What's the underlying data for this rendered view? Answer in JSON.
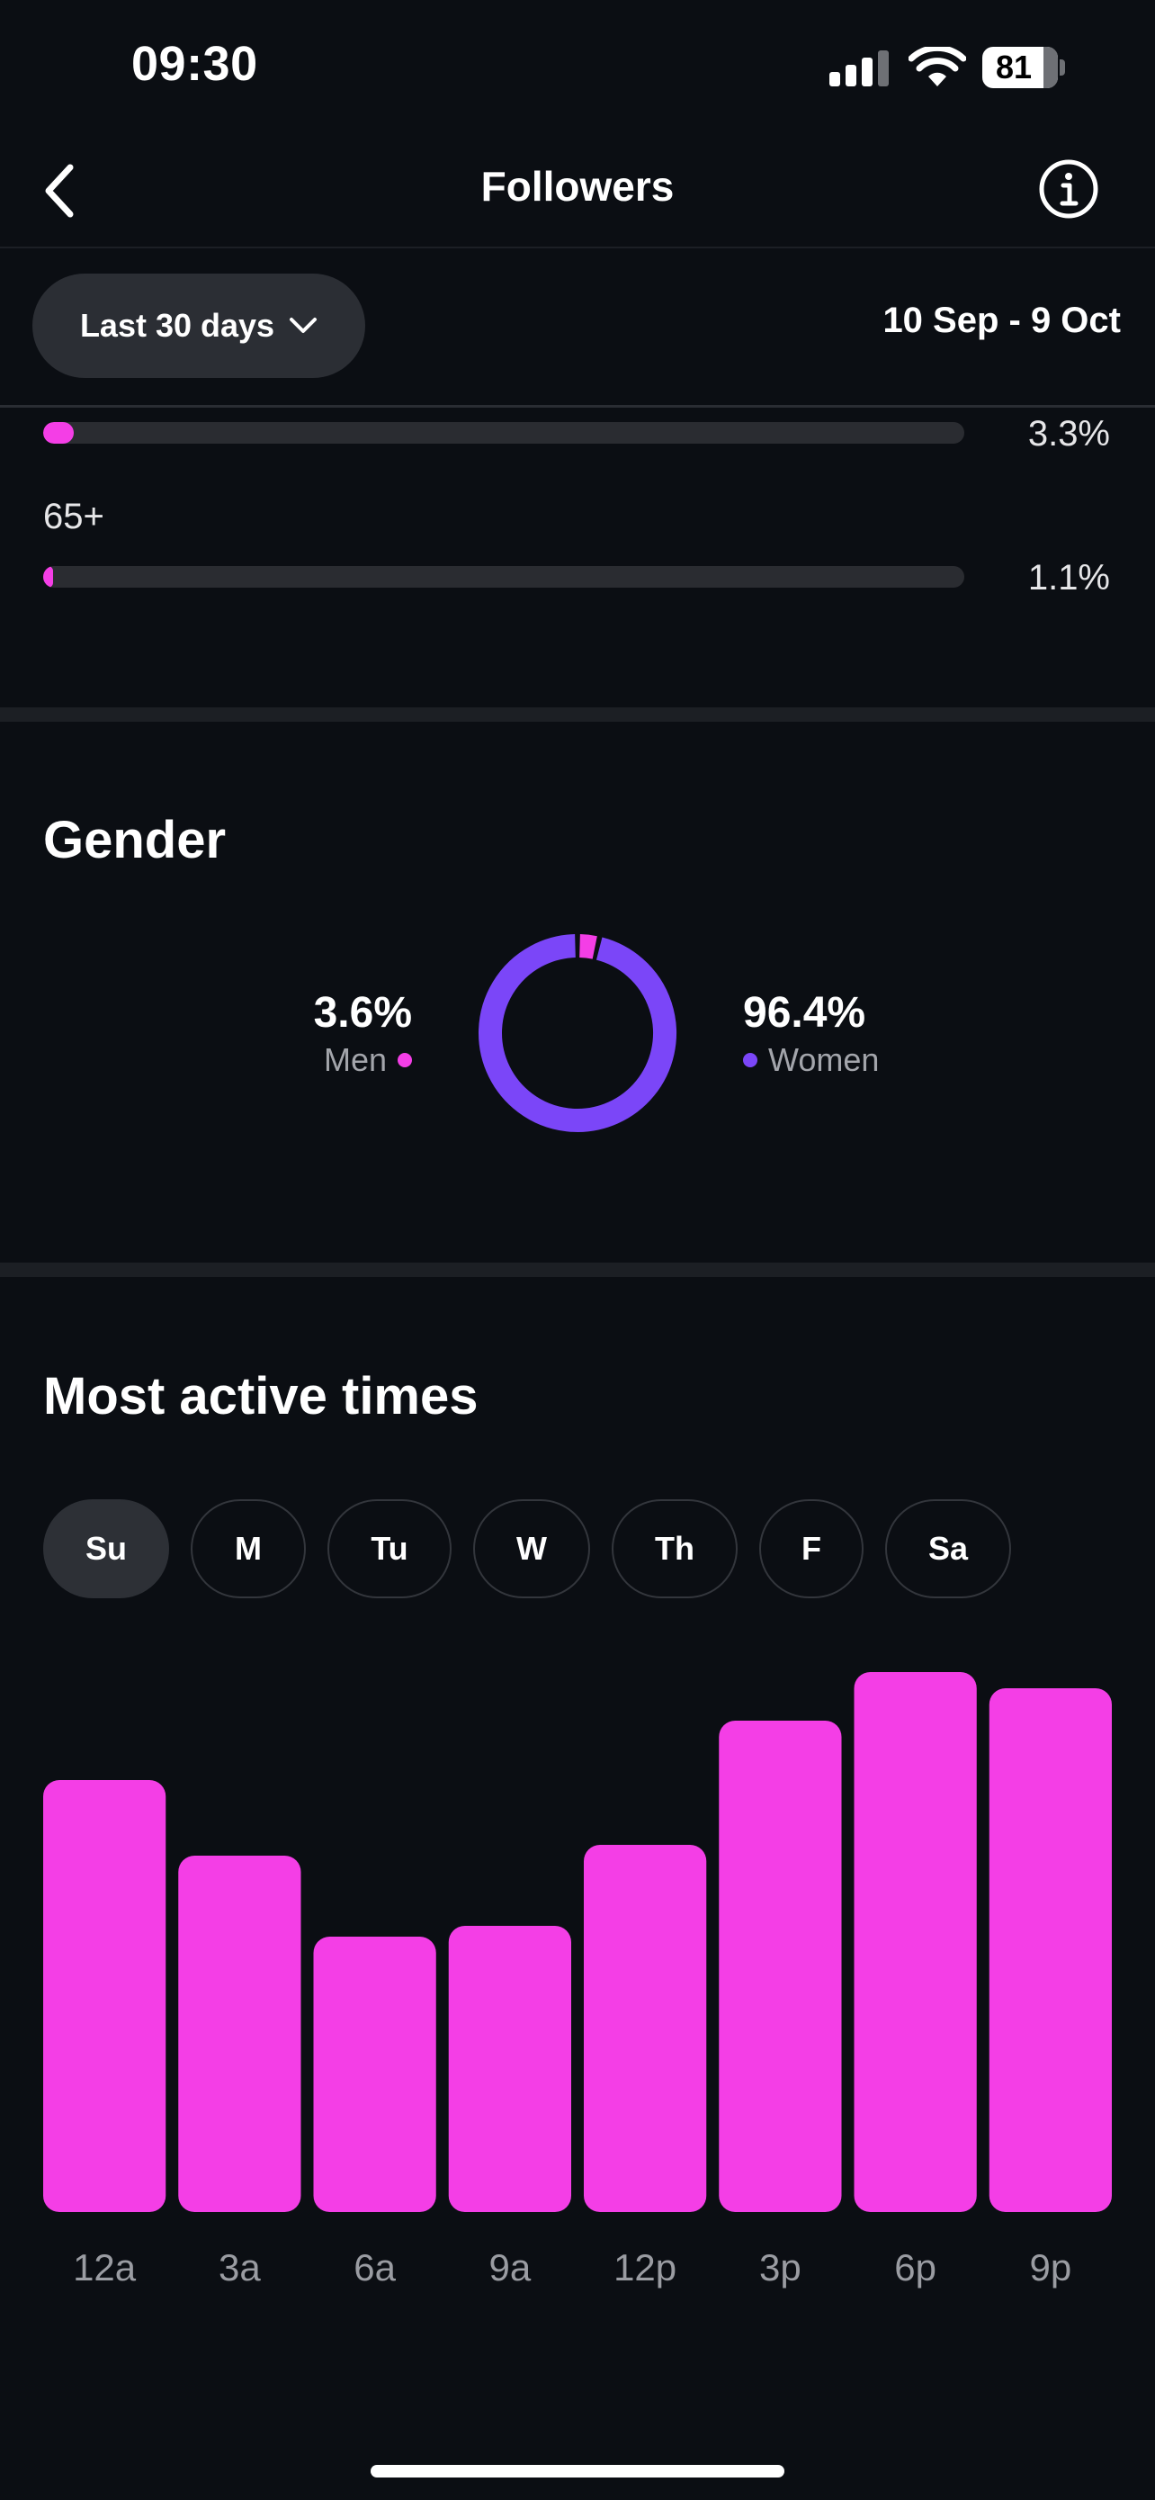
{
  "status_bar": {
    "time": "09:30",
    "battery": "81",
    "battery_level": 0.81
  },
  "header": {
    "title": "Followers",
    "back_icon": "chevron-left-icon",
    "info_icon": "info-circle-icon"
  },
  "filter": {
    "range_label": "Last 30 days",
    "date_range": "10 Sep - 9 Oct"
  },
  "age": {
    "rows": [
      {
        "label": "",
        "percent_label": "3.3%",
        "value": 3.3
      },
      {
        "label": "65+",
        "percent_label": "1.1%",
        "value": 1.1
      }
    ]
  },
  "gender": {
    "title": "Gender",
    "men": {
      "label": "Men",
      "percent_label": "3.6%",
      "value": 3.6,
      "color": "#f43ee6"
    },
    "women": {
      "label": "Women",
      "percent_label": "96.4%",
      "value": 96.4,
      "color": "#7b46f8"
    }
  },
  "active_times": {
    "title": "Most active times",
    "days": [
      "Su",
      "M",
      "Tu",
      "W",
      "Th",
      "F",
      "Sa"
    ],
    "selected_day": "Su"
  },
  "chart_data": {
    "type": "bar",
    "categories": [
      "12a",
      "3a",
      "6a",
      "9a",
      "12p",
      "3p",
      "6p",
      "9p"
    ],
    "values": [
      80,
      66,
      51,
      53,
      68,
      91,
      100,
      97
    ],
    "ylim": [
      0,
      100
    ],
    "grid": false,
    "color": "#f43ee6"
  }
}
